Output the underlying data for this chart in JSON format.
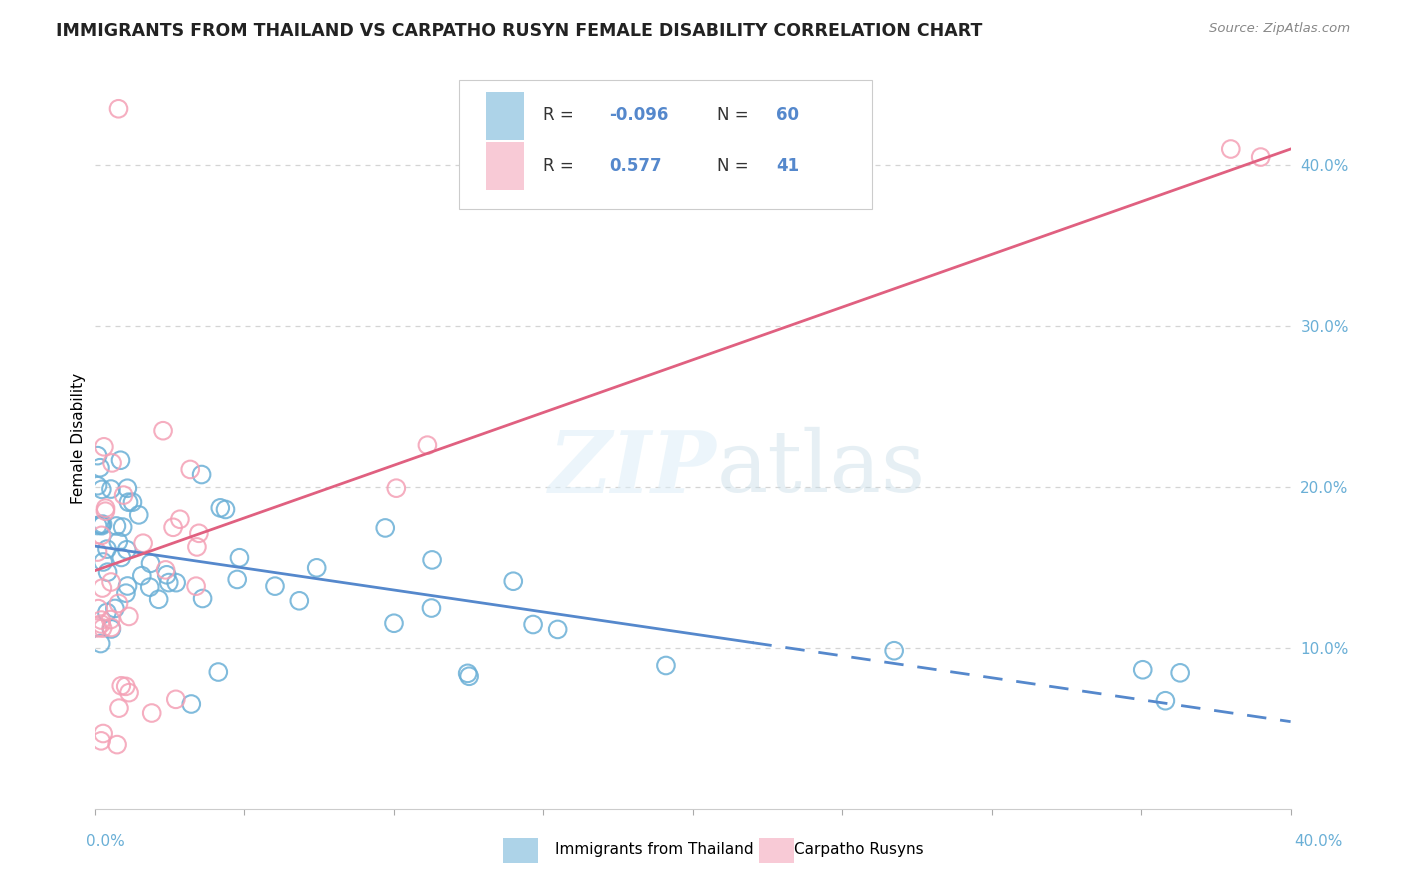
{
  "title": "IMMIGRANTS FROM THAILAND VS CARPATHO RUSYN FEMALE DISABILITY CORRELATION CHART",
  "source": "Source: ZipAtlas.com",
  "ylabel": "Female Disability",
  "right_ytick_vals": [
    0.1,
    0.2,
    0.3,
    0.4
  ],
  "right_ytick_labels": [
    "10.0%",
    "20.0%",
    "30.0%",
    "40.0%"
  ],
  "legend_R1": "-0.096",
  "legend_N1": "60",
  "legend_R2": "0.577",
  "legend_N2": "41",
  "legend_label1": "Immigrants from Thailand",
  "legend_label2": "Carpatho Rusyns",
  "watermark": "ZIPatlas",
  "thailand_color": "#6aafd6",
  "rusyn_color": "#f4a0b5",
  "rusyn_line_color": "#e06080",
  "thailand_line_color": "#5588cc",
  "background_color": "#ffffff",
  "grid_color": "#d4d4d4",
  "title_color": "#222222",
  "source_color": "#888888",
  "right_tick_color": "#6aafd6",
  "xmin": 0.0,
  "xmax": 0.4,
  "ymin": 0.0,
  "ymax": 0.46
}
